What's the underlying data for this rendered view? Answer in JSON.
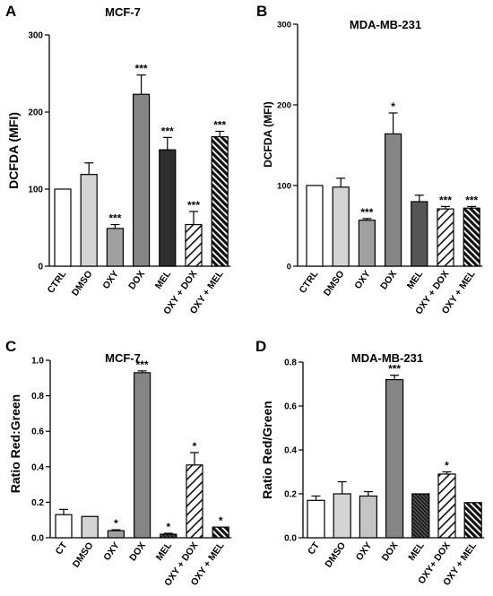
{
  "chart_data": [
    {
      "panel": "A",
      "type": "bar",
      "title": "MCF-7",
      "ylabel": "DCFDA (MFI)",
      "xlabel": "",
      "ylim": [
        0,
        300
      ],
      "yticks": [
        "0",
        "100",
        "200",
        "300"
      ],
      "categories": [
        "CTRL",
        "DMSO",
        "OXY",
        "DOX",
        "MEL",
        "OXY + DOX",
        "OXY + MEL"
      ],
      "values": [
        100,
        119,
        49,
        223,
        151,
        54,
        168
      ],
      "errors": [
        0,
        15,
        5,
        25,
        16,
        17,
        7
      ],
      "significance": [
        "",
        "",
        "***",
        "***",
        "***",
        "***",
        "***"
      ],
      "fills": [
        "#ffffff",
        "#d4d4d4",
        "#a0a0a0",
        "#858585",
        "#2e2e2e",
        "hatch-light",
        "hatch-dark"
      ],
      "grid": false,
      "legend": "none"
    },
    {
      "panel": "B",
      "type": "bar",
      "title": "MDA-MB-231",
      "ylabel": "DCFDA (MFI)",
      "xlabel": "",
      "ylim": [
        0,
        300
      ],
      "yticks": [
        "0",
        "100",
        "200",
        "300"
      ],
      "categories": [
        "CTRL",
        "DMSO",
        "OXY",
        "DOX",
        "MEL",
        "OXY + DOX",
        "OXY + MEL"
      ],
      "values": [
        100,
        98,
        57,
        164,
        80,
        71,
        72
      ],
      "errors": [
        0,
        11,
        2,
        26,
        8,
        3,
        2
      ],
      "significance": [
        "",
        "",
        "***",
        "*",
        "",
        "***",
        "***"
      ],
      "fills": [
        "#ffffff",
        "#d4d4d4",
        "#a0a0a0",
        "#858585",
        "#555555",
        "hatch-light",
        "hatch-dark"
      ],
      "grid": false,
      "legend": "none"
    },
    {
      "panel": "C",
      "type": "bar",
      "title": "MCF-7",
      "ylabel": "Ratio Red:Green",
      "xlabel": "",
      "ylim": [
        0,
        1.0
      ],
      "yticks": [
        "0.0",
        "0.2",
        "0.4",
        "0.6",
        "0.8",
        "1.0"
      ],
      "categories": [
        "CT",
        "DMSO",
        "OXY",
        "DOX",
        "MEL",
        "OXY + DOX",
        "OXY + MEL"
      ],
      "values": [
        0.13,
        0.12,
        0.04,
        0.93,
        0.02,
        0.41,
        0.06
      ],
      "errors": [
        0.03,
        0.0,
        0.005,
        0.01,
        0.005,
        0.07,
        0.0
      ],
      "significance": [
        "",
        "",
        "*",
        "***",
        "*",
        "*",
        "*"
      ],
      "fills": [
        "#ffffff",
        "#d4d4d4",
        "#a0a0a0",
        "#858585",
        "hatch-dark-narrow",
        "hatch-light",
        "hatch-dark"
      ],
      "grid": false,
      "legend": "none"
    },
    {
      "panel": "D",
      "type": "bar",
      "title": "MDA-MB-231",
      "ylabel": "Ratio Red/Green",
      "xlabel": "",
      "ylim": [
        0,
        0.8
      ],
      "yticks": [
        "0.0",
        "0.2",
        "0.4",
        "0.6",
        "0.8"
      ],
      "categories": [
        "CT",
        "DMSO",
        "OXY",
        "DOX",
        "MEL",
        "OXY+ DOX",
        "OXY + MEL"
      ],
      "values": [
        0.17,
        0.2,
        0.19,
        0.72,
        0.2,
        0.29,
        0.16
      ],
      "errors": [
        0.02,
        0.055,
        0.02,
        0.02,
        0.0,
        0.01,
        0.0
      ],
      "significance": [
        "",
        "",
        "",
        "***",
        "",
        "*",
        ""
      ],
      "fills": [
        "#ffffff",
        "#d4d4d4",
        "#c4c4c4",
        "#858585",
        "hatch-dark-narrow",
        "hatch-light",
        "hatch-dark"
      ],
      "grid": false,
      "legend": "none"
    }
  ]
}
